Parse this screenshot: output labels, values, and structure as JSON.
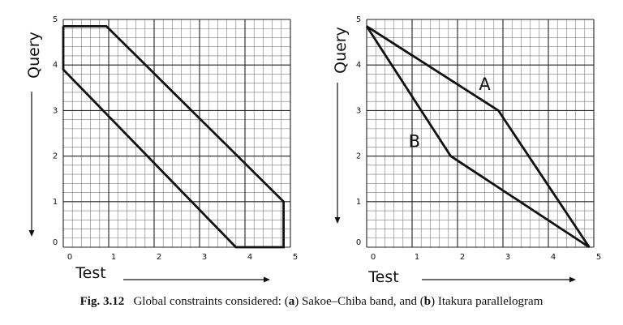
{
  "panels": [
    {
      "id": "a",
      "x_label": "Test",
      "y_label": "Query",
      "x_ticks": [
        "0",
        "1",
        "2",
        "3",
        "4",
        "5"
      ],
      "y_ticks": [
        "0",
        "1",
        "2",
        "3",
        "4",
        "5"
      ],
      "paths": [
        {
          "points": [
            [
              0,
              4.85
            ],
            [
              0.95,
              4.85
            ],
            [
              4.85,
              1.0
            ],
            [
              4.85,
              0.0
            ],
            [
              3.8,
              0.0
            ],
            [
              0,
              3.9
            ],
            [
              0,
              4.85
            ]
          ]
        }
      ],
      "labels": []
    },
    {
      "id": "b",
      "x_label": "Test",
      "y_label": "Query",
      "x_ticks": [
        "0",
        "1",
        "2",
        "3",
        "4",
        "5"
      ],
      "y_ticks": [
        "0",
        "1",
        "2",
        "3",
        "4",
        "5"
      ],
      "paths": [
        {
          "points": [
            [
              0,
              4.85
            ],
            [
              2.9,
              3.0
            ],
            [
              4.9,
              0.0
            ]
          ]
        },
        {
          "points": [
            [
              0,
              4.85
            ],
            [
              1.85,
              2.0
            ],
            [
              4.9,
              0.0
            ]
          ]
        }
      ],
      "labels": [
        {
          "text": "A",
          "x": 2.6,
          "y": 3.45
        },
        {
          "text": "B",
          "x": 1.05,
          "y": 2.2
        }
      ]
    }
  ],
  "caption": {
    "prefix": "Fig. 3.12",
    "body": "Global constraints considered: (a) Sakoe–Chiba band, and (b) Itakura parallelogram"
  },
  "colors": {
    "line": "#111111",
    "grid_major": "#222222",
    "grid_minor": "#7a7a7a"
  }
}
